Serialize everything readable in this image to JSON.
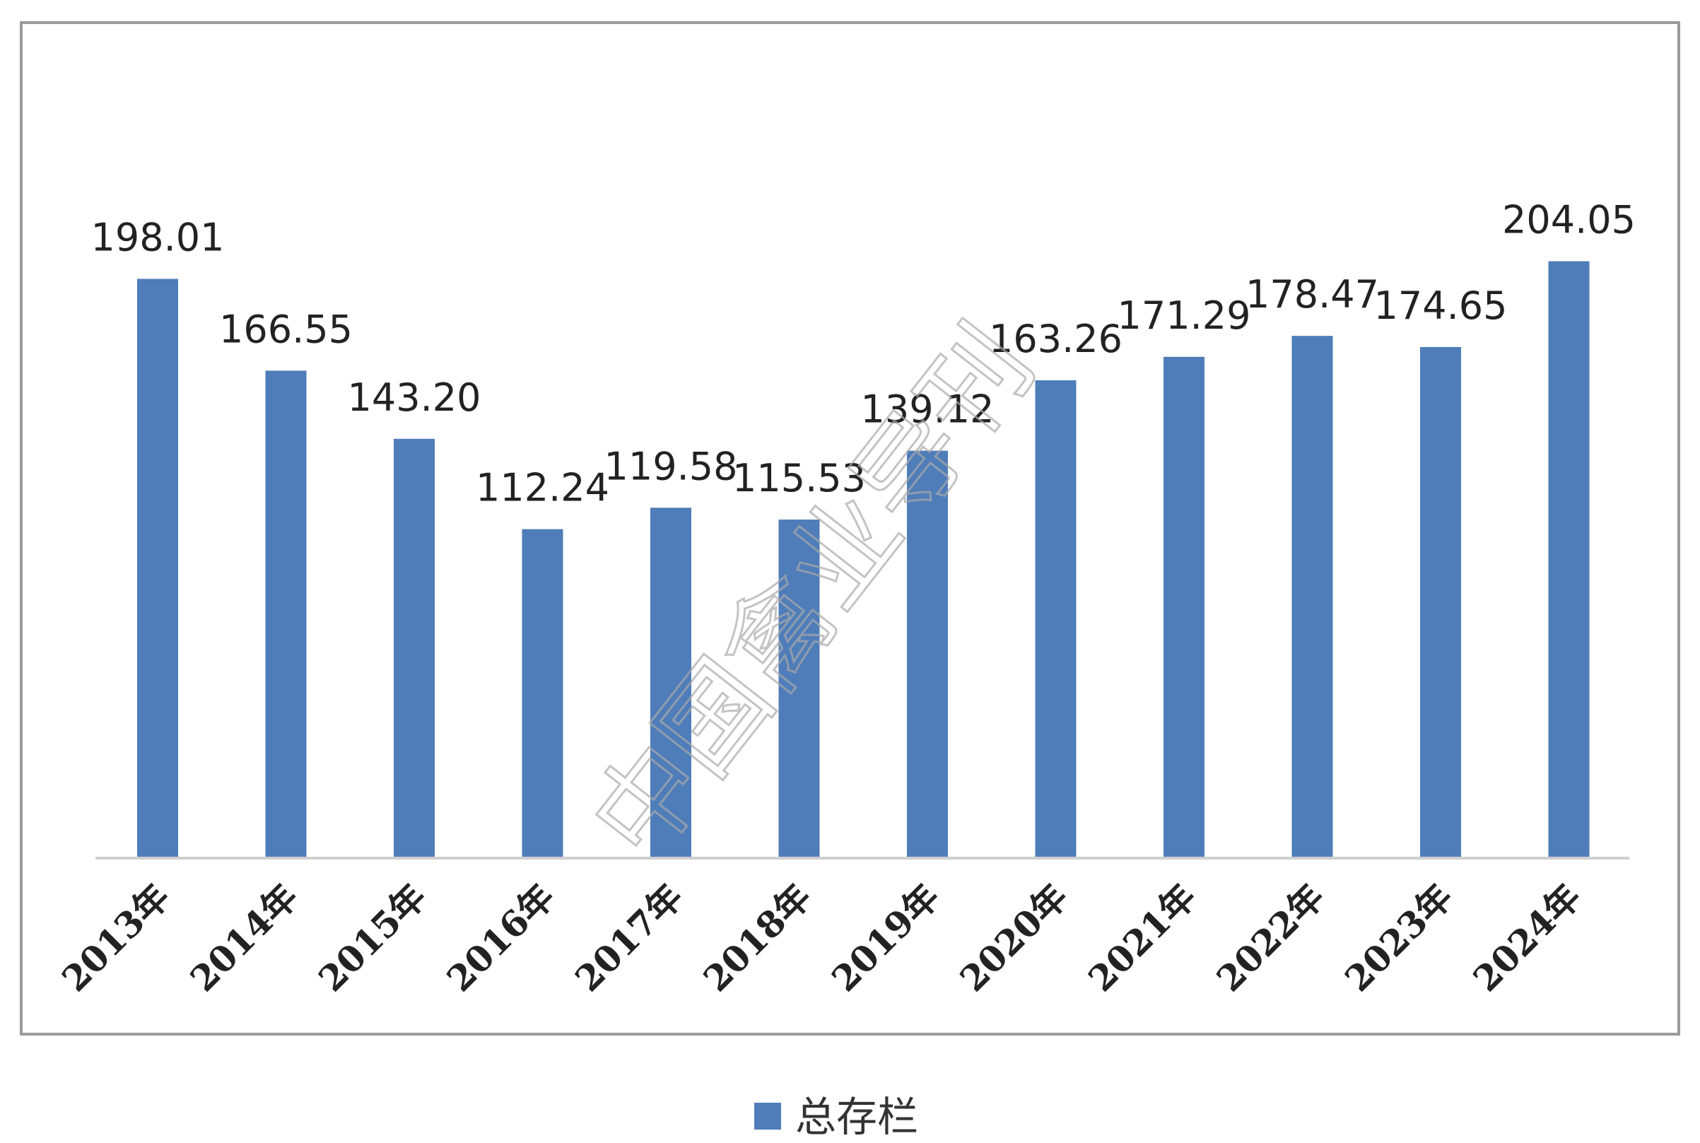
{
  "chart_data": {
    "type": "bar",
    "categories": [
      "2013年",
      "2014年",
      "2015年",
      "2016年",
      "2017年",
      "2018年",
      "2019年",
      "2020年",
      "2021年",
      "2022年",
      "2023年",
      "2024年"
    ],
    "series": [
      {
        "name": "总存栏",
        "values": [
          198.01,
          166.55,
          143.2,
          112.24,
          119.58,
          115.53,
          139.12,
          163.26,
          171.29,
          178.47,
          174.65,
          204.05
        ],
        "labels": [
          "198.01",
          "166.55",
          "143.20",
          "112.24",
          "119.58",
          "115.53",
          "139.12",
          "163.26",
          "171.29",
          "178.47",
          "174.65",
          "204.05"
        ]
      }
    ],
    "ylim": [
      0,
      210
    ],
    "grid": false,
    "legend": "bottom-center",
    "bar_color": "#4f7db9"
  },
  "watermark": "中国禽业导刊"
}
